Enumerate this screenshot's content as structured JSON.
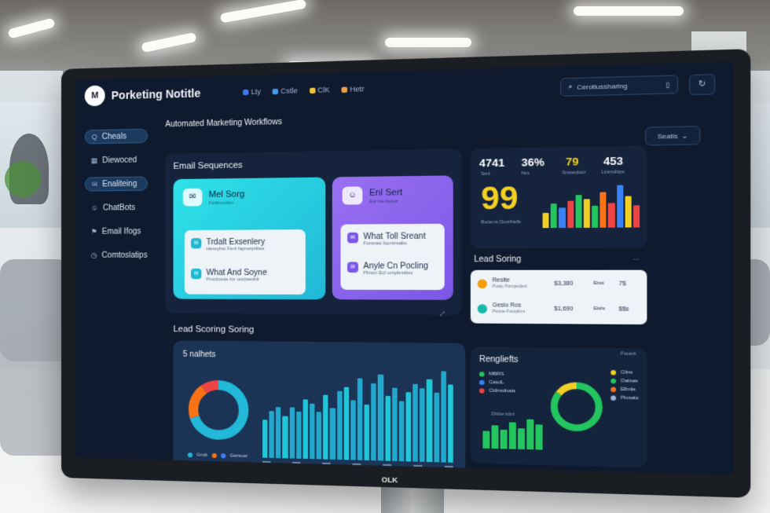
{
  "app": {
    "logo_text": "M",
    "title": "Porketing Notitle"
  },
  "nav_tabs": [
    {
      "label": "Lty",
      "color": "#3d7bf0"
    },
    {
      "label": "Cstle",
      "color": "#3d9bf0"
    },
    {
      "label": "ClK",
      "color": "#f0c23d"
    },
    {
      "label": "Hetr",
      "color": "#f0a33d"
    }
  ],
  "search": {
    "placeholder": "Cerotlussharing",
    "icon": "search-icon"
  },
  "top_button": {
    "icon": "refresh-icon"
  },
  "sidebar": {
    "items": [
      {
        "label": "Cheals",
        "icon": "search-icon",
        "glyph": "Q",
        "active": true
      },
      {
        "label": "Diewoced",
        "icon": "grid-icon",
        "glyph": "▦",
        "active": false
      },
      {
        "label": "Enaliteing",
        "icon": "mail-icon",
        "glyph": "✉",
        "active": true
      },
      {
        "label": "ChatBots",
        "icon": "chat-icon",
        "glyph": "☺",
        "active": false
      },
      {
        "label": "Email Ifogs",
        "icon": "flag-icon",
        "glyph": "⚑",
        "active": false
      },
      {
        "label": "Comtoslatips",
        "icon": "clock-icon",
        "glyph": "◷",
        "active": false
      }
    ]
  },
  "main": {
    "heading": "Automated Marketing Workflows",
    "select_label": "Seatis",
    "email_sequences": {
      "title": "Email Sequences",
      "card_cyan": {
        "head_title": "Mel Sorg",
        "head_sub": "Finthonxlsn",
        "rows": [
          {
            "title": "Trdalt Exsenlery",
            "sub": "Hereyhst Fenl fapnerpilites"
          },
          {
            "title": "What And Soyne",
            "sub": "Procbonte for onclsenblt"
          }
        ]
      },
      "card_purple": {
        "head_title": "Enl Sert",
        "head_sub": "Esi Henlgsor",
        "rows": [
          {
            "title": "What Toll Sreant",
            "sub": "Forsrasi fopntrsalto"
          },
          {
            "title": "Anyle Cn Pocling",
            "sub": "Plinon Ecl omplesttiss"
          }
        ]
      }
    },
    "stats": {
      "values": [
        {
          "value": "4741",
          "label": "Sent",
          "color": "#ffffff"
        },
        {
          "value": "36%",
          "label": "Hes",
          "color": "#ffffff"
        },
        {
          "value": "79",
          "label": "Sroowoloctr",
          "color": "#f2cf24"
        },
        {
          "value": "453",
          "label": "Ltrsmidlops",
          "color": "#ffffff"
        }
      ],
      "big_number": "99",
      "big_caption": "Bucsens (Scorthsdls",
      "bar_colors": [
        "#f2cf24",
        "#22c55e",
        "#3b82f6",
        "#ef4444",
        "#22c55e",
        "#f2cf24",
        "#22c55e",
        "#f97316",
        "#ef4444",
        "#3b82f6",
        "#f2cf24",
        "#ef4444"
      ],
      "bar_levels": [
        0.35,
        0.55,
        0.45,
        0.6,
        0.75,
        0.65,
        0.5,
        0.8,
        0.55,
        0.95,
        0.7,
        0.5
      ]
    },
    "lead_scoring_small": {
      "title": "Lead Soring",
      "rows": [
        {
          "name": "Reslte",
          "sub": "Poatc Pompedent",
          "v1": "$3,380",
          "v2": "Etss",
          "v3": "7$",
          "dot": "#f59e0b"
        },
        {
          "name": "Geslo Ros",
          "sub": "Pertoe Foroplirrs",
          "v1": "$1,690",
          "v2": "Eisls",
          "v3": "$$s",
          "dot": "#14b8a6"
        }
      ]
    },
    "lead_scoring_chart": {
      "title": "Lead Scoring Soring",
      "subtitle": "5 nalhets",
      "legend": [
        "Grutt",
        "Gersuer"
      ],
      "donut_colors": [
        "#22b8d8",
        "#f97316",
        "#ef4444"
      ],
      "donut_shares": [
        0.7,
        0.2,
        0.1
      ],
      "bars": [
        0.45,
        0.55,
        0.6,
        0.5,
        0.6,
        0.55,
        0.7,
        0.65,
        0.55,
        0.75,
        0.6,
        0.8,
        0.85,
        0.7,
        0.95,
        0.65,
        0.9,
        1.0,
        0.75,
        0.85,
        0.7,
        0.8,
        0.9,
        0.85,
        0.95,
        0.8,
        1.05,
        0.9
      ]
    },
    "rengliefts": {
      "title": "Rengliefts",
      "corner": "Fouett",
      "legend_left": [
        {
          "label": "MBRS",
          "color": "#22c55e"
        },
        {
          "label": "CatolL",
          "color": "#3b82f6"
        },
        {
          "label": "Ctdnsdnats",
          "color": "#ef4444"
        }
      ],
      "bars_label": "Dlsbte tshnl",
      "bars": [
        0.55,
        0.75,
        0.6,
        0.85,
        0.65,
        0.95,
        0.8
      ],
      "donut_colors": [
        "#22c55e",
        "#f2cf24"
      ],
      "donut_shares": [
        0.85,
        0.15
      ],
      "legend_right": [
        {
          "label": "Cilns",
          "color": "#f2cf24"
        },
        {
          "label": "Oatsas",
          "color": "#22c55e"
        },
        {
          "label": "Elbnle",
          "color": "#f97316"
        },
        {
          "label": "Piosats",
          "color": "#9fb3d9"
        }
      ]
    }
  },
  "monitor_brand": "OLK"
}
